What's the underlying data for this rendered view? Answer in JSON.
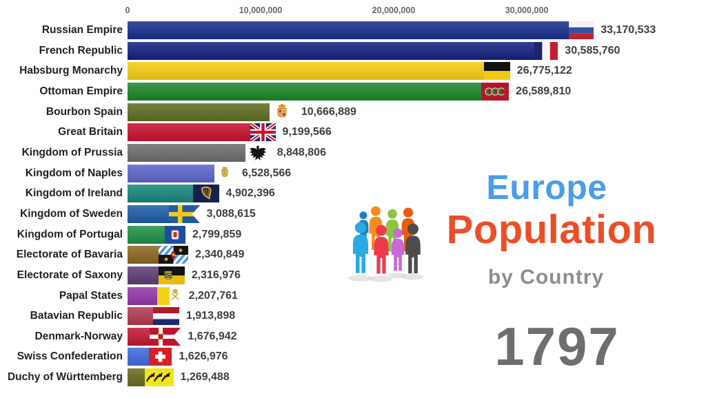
{
  "page": {
    "background": "#ffffff"
  },
  "titles": {
    "line1": "Europe",
    "line1_color": "#4a9de8",
    "line2": "Population",
    "line2_color": "#ea4f28",
    "line3": "by Country",
    "line3_color": "#8e8e8e"
  },
  "year": {
    "value": "1797",
    "color": "#6e6e6e"
  },
  "people_icon": {
    "shadow_color": "#d4d4d4",
    "colors": [
      "#f68b1f",
      "#8cc63e",
      "#ea5b0c",
      "#1f7ec2",
      "#29abe2",
      "#ed3b4d",
      "#4d4d4d",
      "#c969d6"
    ]
  },
  "chart_data": {
    "type": "bar",
    "orientation": "horizontal",
    "title": "Europe Population by Country",
    "year": 1797,
    "grid": false,
    "x_axis": {
      "position": "top",
      "ticks": [
        {
          "label": "0",
          "value": 0
        },
        {
          "label": "10,000,000",
          "value": 10000000
        },
        {
          "label": "20,000,000",
          "value": 20000000
        },
        {
          "label": "30,000,000",
          "value": 30000000
        }
      ],
      "max_value": 35000000
    },
    "bars": [
      {
        "country": "Russian Empire",
        "value": 33170533,
        "display": "33,170,533",
        "color": "#1b2e8c",
        "flag": "russian-empire"
      },
      {
        "country": "French Republic",
        "value": 30585760,
        "display": "30,585,760",
        "color": "#15207f",
        "flag": "french-republic"
      },
      {
        "country": "Habsburg Monarchy",
        "value": 26775122,
        "display": "26,775,122",
        "color": "#f6ce12",
        "flag": "habsburg-monarchy"
      },
      {
        "country": "Ottoman Empire",
        "value": 26589810,
        "display": "26,589,810",
        "color": "#1c8628",
        "flag": "ottoman-empire"
      },
      {
        "country": "Bourbon Spain",
        "value": 10666889,
        "display": "10,666,889",
        "color": "#5d6e22",
        "flag": "bourbon-spain"
      },
      {
        "country": "Great Britain",
        "value": 9199566,
        "display": "9,199,566",
        "color": "#c8102e",
        "flag": "great-britain"
      },
      {
        "country": "Kingdom of Prussia",
        "value": 8848806,
        "display": "8,848,806",
        "color": "#6d6d6d",
        "flag": "kingdom-of-prussia"
      },
      {
        "country": "Kingdom of Naples",
        "value": 6528566,
        "display": "6,528,566",
        "color": "#5d64cb",
        "flag": "kingdom-of-naples"
      },
      {
        "country": "Kingdom of Ireland",
        "value": 4902396,
        "display": "4,902,396",
        "color": "#19867c",
        "flag": "kingdom-of-ireland"
      },
      {
        "country": "Kingdom of Sweden",
        "value": 3088615,
        "display": "3,088,615",
        "color": "#1e5ca6",
        "flag": "kingdom-of-sweden"
      },
      {
        "country": "Kingdom of Portugal",
        "value": 2799859,
        "display": "2,799,859",
        "color": "#1f8f47",
        "flag": "kingdom-of-portugal"
      },
      {
        "country": "Electorate of Bavaria",
        "value": 2340849,
        "display": "2,340,849",
        "color": "#8a671f",
        "flag": "electorate-of-bavaria"
      },
      {
        "country": "Electorate of Saxony",
        "value": 2316976,
        "display": "2,316,976",
        "color": "#5e3d73",
        "flag": "electorate-of-saxony"
      },
      {
        "country": "Papal States",
        "value": 2207761,
        "display": "2,207,761",
        "color": "#9336a8",
        "flag": "papal-states"
      },
      {
        "country": "Batavian Republic",
        "value": 1913898,
        "display": "1,913,898",
        "color": "#b23a52",
        "flag": "batavian-republic"
      },
      {
        "country": "Denmark-Norway",
        "value": 1676942,
        "display": "1,676,942",
        "color": "#c01832",
        "flag": "denmark-norway"
      },
      {
        "country": "Swiss Confederation",
        "value": 1626976,
        "display": "1,626,976",
        "color": "#4169dd",
        "flag": "swiss-confederation"
      },
      {
        "country": "Duchy of Württemberg",
        "value": 1269488,
        "display": "1,269,488",
        "color": "#6b6b1f",
        "flag": "duchy-of-wurttemberg"
      }
    ]
  }
}
